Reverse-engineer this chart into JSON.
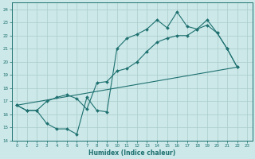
{
  "xlabel": "Humidex (Indice chaleur)",
  "xlim": [
    -0.5,
    23.5
  ],
  "ylim": [
    14,
    24.5
  ],
  "yticks": [
    14,
    15,
    16,
    17,
    18,
    19,
    20,
    21,
    22,
    23,
    24
  ],
  "xticks": [
    0,
    1,
    2,
    3,
    4,
    5,
    6,
    7,
    8,
    9,
    10,
    11,
    12,
    13,
    14,
    15,
    16,
    17,
    18,
    19,
    20,
    21,
    22,
    23
  ],
  "bg_color": "#cce8e8",
  "grid_color": "#aacccc",
  "line_color": "#1e7070",
  "line1_x": [
    0,
    1,
    2,
    3,
    4,
    5,
    6,
    7,
    8,
    9,
    10,
    11,
    12,
    13,
    14,
    15,
    16,
    17,
    18,
    19,
    20,
    21,
    22
  ],
  "line1_y": [
    16.7,
    16.3,
    16.3,
    15.3,
    14.9,
    14.9,
    14.5,
    17.3,
    16.3,
    16.2,
    21.0,
    21.8,
    22.1,
    22.5,
    23.2,
    22.6,
    23.8,
    22.7,
    22.5,
    23.2,
    22.2,
    21.0,
    19.6
  ],
  "line2_x": [
    0,
    1,
    2,
    3,
    4,
    5,
    6,
    7,
    8,
    9,
    10,
    11,
    12,
    13,
    14,
    15,
    16,
    17,
    18,
    19,
    20,
    21,
    22
  ],
  "line2_y": [
    16.7,
    16.3,
    16.3,
    17.0,
    17.3,
    17.5,
    17.2,
    16.4,
    18.4,
    18.5,
    19.3,
    19.5,
    20.0,
    20.8,
    21.5,
    21.8,
    22.0,
    22.0,
    22.5,
    22.8,
    22.2,
    21.0,
    19.6
  ],
  "line3_x": [
    0,
    22
  ],
  "line3_y": [
    16.7,
    19.6
  ]
}
